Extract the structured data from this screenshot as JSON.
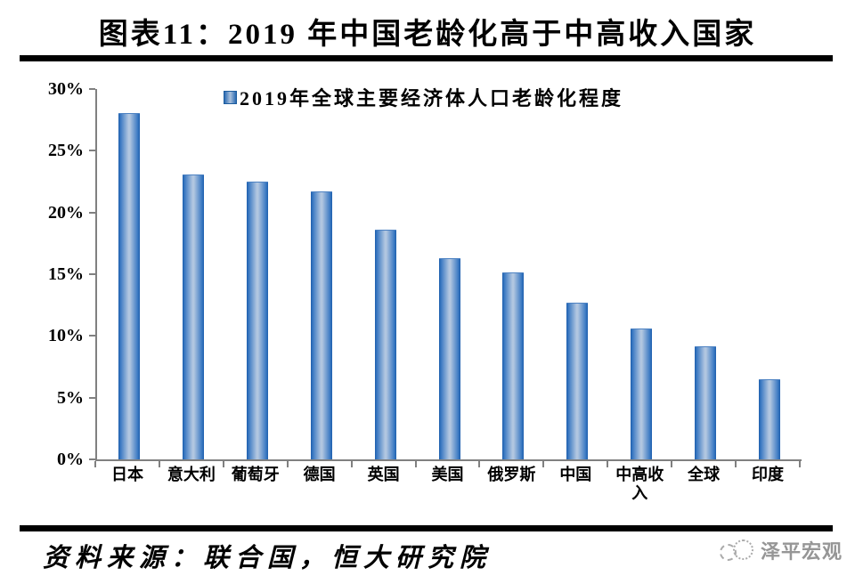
{
  "title": "图表11：2019 年中国老龄化高于中高收入国家",
  "chart_data": {
    "type": "bar",
    "title": "2019年全球主要经济体人口老龄化程度",
    "categories": [
      "日本",
      "意大利",
      "葡萄牙",
      "德国",
      "英国",
      "美国",
      "俄罗斯",
      "中国",
      "中高收入",
      "全球",
      "印度"
    ],
    "category_slugs": [
      "japan",
      "italy",
      "portugal",
      "germany",
      "uk",
      "usa",
      "russia",
      "china",
      "upper-middle-income",
      "world",
      "india"
    ],
    "values": [
      28.0,
      23.0,
      22.4,
      21.6,
      18.5,
      16.2,
      15.1,
      12.6,
      10.5,
      9.1,
      6.4
    ],
    "unit": "%",
    "xlabel": "",
    "ylabel": "",
    "ylim": [
      0,
      30
    ],
    "ytick_labels": [
      "30%",
      "25%",
      "20%",
      "15%",
      "10%",
      "5%",
      "0%"
    ],
    "grid": false,
    "legend_position": "top-center",
    "bar_edge_color": "#1d5fae",
    "bar_center_color": "#b1c6e0",
    "axis_color": "#808080"
  },
  "footer": {
    "source": "资料来源：联合国，恒大研究院",
    "logo": "泽平宏观"
  },
  "colors": {
    "accent_blue": "#2e6db4",
    "rule_black": "#000000",
    "logo_gray": "#969696",
    "background": "#ffffff"
  }
}
